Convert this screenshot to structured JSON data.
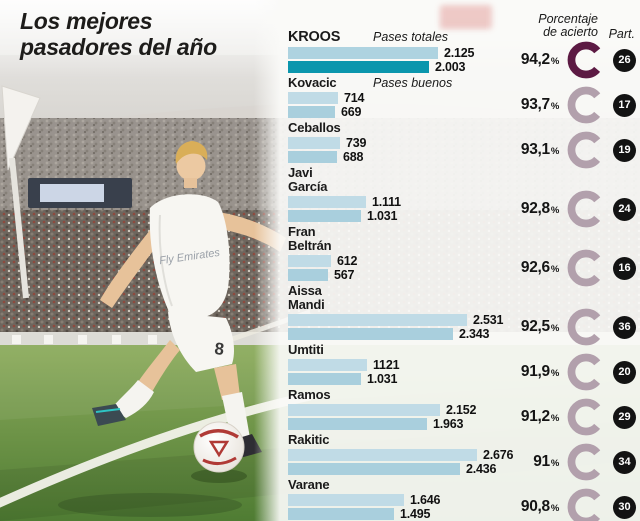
{
  "title": "Los mejores\npasadores del año",
  "legend": {
    "totales": "Pases totales",
    "buenos": "Pases buenos"
  },
  "columns": {
    "accuracy": "Porcentaje\nde acierto",
    "part": "Part."
  },
  "percent_sign": "%",
  "colors": {
    "bar_total": "#c0dbe6",
    "bar_good": "#a9cfdd",
    "bar_good_featured": "#0b96ad",
    "ring_light": "#b2a0ac",
    "ring_dark": "#5c1a43",
    "badge_bg": "#131313",
    "grass": "#55813a"
  },
  "photo": {
    "player_number": "8",
    "jersey_text": "Fly Emirates"
  },
  "chart_data": {
    "type": "bar",
    "title": "Los mejores pasadores del año",
    "series_labels": [
      "Pases totales",
      "Pases buenos"
    ],
    "xlim": [
      0,
      2700
    ],
    "grid": false,
    "legend_position": "inline-top",
    "players": [
      {
        "name": "KROOS",
        "total": "2.125",
        "good": "2.003",
        "pct": "94,2",
        "part": "26"
      },
      {
        "name": "Kovacic",
        "total": "714",
        "good": "669",
        "pct": "93,7",
        "part": "17"
      },
      {
        "name": "Ceballos",
        "total": "739",
        "good": "688",
        "pct": "93,1",
        "part": "19"
      },
      {
        "name": "Javi\nGarcía",
        "total": "1.111",
        "good": "1.031",
        "pct": "92,8",
        "part": "24"
      },
      {
        "name": "Fran\nBeltrán",
        "total": "612",
        "good": "567",
        "pct": "92,6",
        "part": "16"
      },
      {
        "name": "Aissa\nMandi",
        "total": "2.531",
        "good": "2.343",
        "pct": "92,5",
        "part": "36"
      },
      {
        "name": "Umtiti",
        "total": "1121",
        "good": "1.031",
        "pct": "91,9",
        "part": "20"
      },
      {
        "name": "Ramos",
        "total": "2.152",
        "good": "1.963",
        "pct": "91,2",
        "part": "29"
      },
      {
        "name": "Rakitic",
        "total": "2.676",
        "good": "2.436",
        "pct": "91",
        "part": "34"
      },
      {
        "name": "Varane",
        "total": "1.646",
        "good": "1.495",
        "pct": "90,8",
        "part": "30"
      }
    ]
  }
}
